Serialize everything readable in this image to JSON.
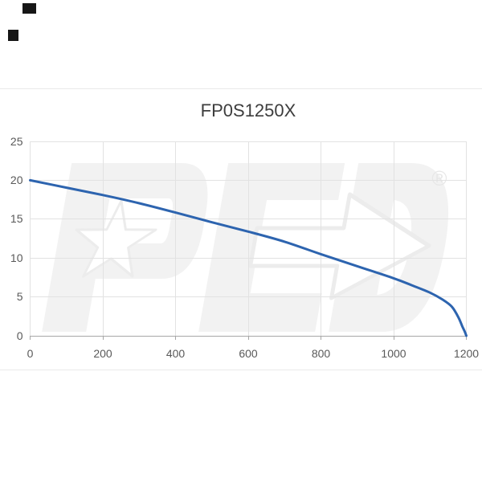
{
  "chart_data": {
    "type": "line",
    "title": "FP0S1250X",
    "xlabel": "",
    "ylabel": "",
    "xlim": [
      0,
      1200
    ],
    "ylim": [
      0,
      25
    ],
    "x_ticks": [
      0,
      200,
      400,
      600,
      800,
      1000,
      1200
    ],
    "y_ticks": [
      0,
      5,
      10,
      15,
      20,
      25
    ],
    "grid": true,
    "legend": false,
    "series": [
      {
        "name": "FP0S1250X",
        "color": "#2d64af",
        "points": [
          [
            0,
            20.0
          ],
          [
            100,
            19.05
          ],
          [
            200,
            18.1
          ],
          [
            300,
            17.05
          ],
          [
            400,
            15.85
          ],
          [
            500,
            14.6
          ],
          [
            600,
            13.4
          ],
          [
            700,
            12.1
          ],
          [
            800,
            10.5
          ],
          [
            900,
            8.95
          ],
          [
            1000,
            7.4
          ],
          [
            1050,
            6.5
          ],
          [
            1100,
            5.55
          ],
          [
            1135,
            4.65
          ],
          [
            1160,
            3.75
          ],
          [
            1178,
            2.4
          ],
          [
            1189,
            1.2
          ],
          [
            1196,
            0.5
          ],
          [
            1200,
            0.0
          ]
        ]
      }
    ]
  },
  "watermark": {
    "brand": "PED",
    "registered_symbol": "®"
  },
  "colors": {
    "line": "#2d64af",
    "grid": "#e2e2e2",
    "axis": "#a6a6a6",
    "tick_label": "#595959",
    "title": "#3d3d3d",
    "watermark": "#f2f2f2",
    "background": "#ffffff"
  }
}
